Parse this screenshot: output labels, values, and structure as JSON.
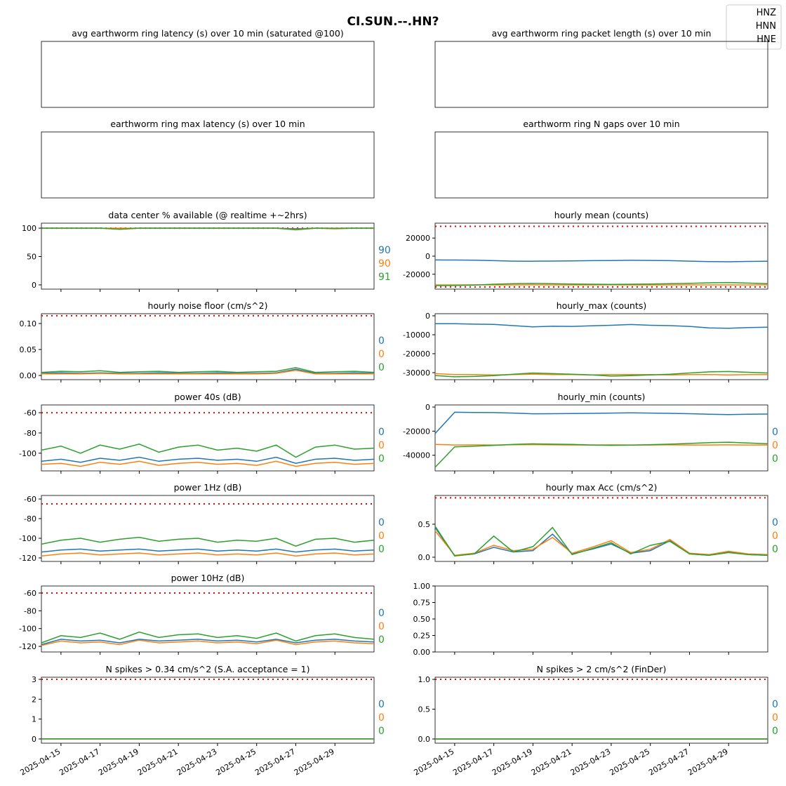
{
  "title": "CI.SUN.--.HN?",
  "channels": [
    {
      "name": "HNZ",
      "color": "#1f77b4"
    },
    {
      "name": "HNN",
      "color": "#ff7f0e"
    },
    {
      "name": "HNE",
      "color": "#2ca02c"
    }
  ],
  "x_axis": {
    "x": [
      "2025-04-14",
      "2025-04-15",
      "2025-04-16",
      "2025-04-17",
      "2025-04-18",
      "2025-04-19",
      "2025-04-20",
      "2025-04-21",
      "2025-04-22",
      "2025-04-23",
      "2025-04-24",
      "2025-04-25",
      "2025-04-26",
      "2025-04-27",
      "2025-04-28",
      "2025-04-29",
      "2025-04-30",
      "2025-05-01"
    ],
    "xlim": [
      "2025-04-14",
      "2025-05-01"
    ],
    "xticks": [
      "2025-04-15",
      "2025-04-17",
      "2025-04-19",
      "2025-04-21",
      "2025-04-23",
      "2025-04-25",
      "2025-04-27",
      "2025-04-29"
    ]
  },
  "chart_data": [
    {
      "type": "line",
      "title": "avg earthworm ring latency (s)   over 10 min (saturated @100)"
    },
    {
      "type": "line",
      "title": "avg earthworm ring packet length (s)   over 10 min"
    },
    {
      "type": "line",
      "title": "earthworm ring max latency (s)   over 10 min"
    },
    {
      "type": "line",
      "title": "earthworm ring N gaps   over 10 min"
    },
    {
      "type": "line",
      "title": "data center % available (@ realtime +~2hrs)",
      "ylim": [
        -7.5,
        108.75
      ],
      "yticks": [
        0,
        50,
        100
      ],
      "thresholds": [
        100
      ],
      "series": [
        {
          "values": [
            100,
            100,
            100,
            100,
            99,
            100,
            100,
            100,
            100,
            100,
            100,
            100,
            100,
            99,
            100,
            100,
            100,
            100
          ]
        },
        {
          "values": [
            100,
            100,
            100,
            100,
            100,
            100,
            100,
            100,
            100,
            100,
            100,
            100,
            100,
            98,
            100,
            100,
            100,
            100
          ]
        },
        {
          "values": [
            100,
            100,
            100,
            100,
            98,
            100,
            100,
            100,
            100,
            100,
            100,
            100,
            100,
            97,
            100,
            99,
            100,
            100
          ]
        }
      ],
      "side_labels": [
        90,
        90,
        91
      ]
    },
    {
      "type": "line",
      "title": "hourly mean (counts)",
      "ylim": [
        -36470,
        36470
      ],
      "yticks": [
        -20000,
        0,
        20000
      ],
      "thresholds": [
        33000,
        -34000
      ],
      "series": [
        {
          "values": [
            -4200,
            -4300,
            -4500,
            -5000,
            -5500,
            -5600,
            -5400,
            -5300,
            -5000,
            -4800,
            -4600,
            -4700,
            -5000,
            -5500,
            -6000,
            -6200,
            -5800,
            -5600
          ]
        },
        {
          "values": [
            -31800,
            -31800,
            -31700,
            -31800,
            -31800,
            -31700,
            -31800,
            -31800,
            -31800,
            -31700,
            -31800,
            -31800,
            -31800,
            -31700,
            -31800,
            -31800,
            -31800,
            -31700
          ]
        },
        {
          "values": [
            -32500,
            -32400,
            -32000,
            -31000,
            -30500,
            -30200,
            -30500,
            -30800,
            -31000,
            -31200,
            -31000,
            -30800,
            -30500,
            -30000,
            -29500,
            -29200,
            -29800,
            -30500
          ]
        }
      ]
    },
    {
      "type": "line",
      "title": "hourly noise floor (cm/s^2)",
      "ylim": [
        -0.0081,
        0.1189
      ],
      "yticks": [
        {
          "value": 0,
          "label": "0.00"
        },
        {
          "value": 0.05,
          "label": "0.05"
        },
        {
          "value": 0.1,
          "label": "0.10"
        }
      ],
      "thresholds": [
        0.115
      ],
      "series": [
        {
          "values": [
            0.004,
            0.005,
            0.004,
            0.005,
            0.004,
            0.004,
            0.005,
            0.004,
            0.004,
            0.005,
            0.004,
            0.004,
            0.005,
            0.012,
            0.004,
            0.004,
            0.005,
            0.004
          ]
        },
        {
          "values": [
            0.003,
            0.003,
            0.003,
            0.004,
            0.003,
            0.003,
            0.003,
            0.003,
            0.003,
            0.003,
            0.003,
            0.003,
            0.004,
            0.01,
            0.003,
            0.003,
            0.003,
            0.003
          ]
        },
        {
          "values": [
            0.006,
            0.008,
            0.007,
            0.009,
            0.006,
            0.007,
            0.008,
            0.006,
            0.007,
            0.008,
            0.006,
            0.007,
            0.008,
            0.015,
            0.006,
            0.007,
            0.008,
            0.006
          ]
        }
      ],
      "side_labels": [
        0,
        0,
        0
      ]
    },
    {
      "type": "line",
      "title": "hourly_max (counts)",
      "ylim": [
        -33700,
        1111
      ],
      "yticks": [
        -30000,
        -20000,
        -10000,
        0
      ],
      "series": [
        {
          "values": [
            -4200,
            -4200,
            -4400,
            -4500,
            -5200,
            -5800,
            -5500,
            -5600,
            -5300,
            -5000,
            -4600,
            -5000,
            -5200,
            -5600,
            -6400,
            -6600,
            -6200,
            -6000
          ]
        },
        {
          "values": [
            -30500,
            -31000,
            -31000,
            -31200,
            -31000,
            -30800,
            -31000,
            -31000,
            -31200,
            -31000,
            -31000,
            -31000,
            -31200,
            -31000,
            -31000,
            -31200,
            -31000,
            -31000
          ]
        },
        {
          "values": [
            -31500,
            -32200,
            -32000,
            -31600,
            -30800,
            -30200,
            -30500,
            -30800,
            -31200,
            -31800,
            -31600,
            -31200,
            -30800,
            -30200,
            -29600,
            -29400,
            -29800,
            -30200
          ]
        }
      ]
    },
    {
      "type": "line",
      "title": "power 40s (dB)",
      "ylim": [
        -117.5,
        -52.3
      ],
      "yticks": [
        -100,
        -80,
        -60
      ],
      "thresholds": [
        -60
      ],
      "series": [
        {
          "values": [
            -108,
            -106,
            -109,
            -105,
            -107,
            -104,
            -108,
            -106,
            -105,
            -107,
            -106,
            -108,
            -104,
            -110,
            -106,
            -105,
            -107,
            -106
          ]
        },
        {
          "values": [
            -111,
            -110,
            -113,
            -109,
            -111,
            -108,
            -112,
            -110,
            -109,
            -111,
            -110,
            -112,
            -108,
            -113,
            -110,
            -109,
            -111,
            -110
          ]
        },
        {
          "values": [
            -97,
            -93,
            -100,
            -92,
            -96,
            -91,
            -99,
            -94,
            -92,
            -97,
            -95,
            -98,
            -92,
            -104,
            -94,
            -92,
            -96,
            -95
          ]
        }
      ],
      "side_labels": [
        0,
        0,
        0
      ]
    },
    {
      "type": "line",
      "title": "hourly_min (counts)",
      "ylim": [
        -53000,
        1765
      ],
      "yticks": [
        -40000,
        -20000,
        0
      ],
      "series": [
        {
          "values": [
            -22000,
            -4300,
            -4500,
            -4600,
            -5000,
            -5600,
            -5500,
            -5400,
            -5200,
            -5000,
            -4800,
            -5000,
            -5200,
            -5500,
            -6000,
            -6200,
            -6000,
            -5800
          ]
        },
        {
          "values": [
            -31000,
            -31500,
            -31400,
            -31500,
            -31300,
            -31200,
            -31400,
            -31500,
            -31500,
            -31400,
            -31500,
            -31500,
            -31400,
            -31500,
            -31500,
            -31400,
            -31500,
            -31500
          ]
        },
        {
          "values": [
            -50000,
            -33000,
            -32500,
            -31800,
            -31000,
            -30500,
            -30800,
            -31000,
            -31500,
            -31800,
            -31600,
            -31200,
            -30800,
            -30200,
            -29500,
            -29200,
            -29800,
            -30500
          ]
        }
      ],
      "side_labels": [
        0,
        0,
        0
      ]
    },
    {
      "type": "line",
      "title": "power 1Hz (dB)",
      "ylim": [
        -123.6,
        -56.4
      ],
      "yticks": [
        -120,
        -100,
        -80,
        -60
      ],
      "thresholds": [
        -65
      ],
      "series": [
        {
          "values": [
            -114,
            -112,
            -111,
            -113,
            -112,
            -111,
            -113,
            -112,
            -111,
            -113,
            -112,
            -113,
            -111,
            -114,
            -112,
            -111,
            -113,
            -112
          ]
        },
        {
          "values": [
            -118,
            -116,
            -115,
            -117,
            -116,
            -115,
            -117,
            -116,
            -115,
            -117,
            -116,
            -117,
            -115,
            -118,
            -116,
            -115,
            -117,
            -116
          ]
        },
        {
          "values": [
            -106,
            -102,
            -100,
            -104,
            -101,
            -99,
            -103,
            -101,
            -100,
            -104,
            -102,
            -103,
            -100,
            -108,
            -101,
            -100,
            -104,
            -102
          ]
        }
      ],
      "side_labels": [
        0,
        0,
        0
      ]
    },
    {
      "type": "line",
      "title": "hourly max Acc (cm/s^2)",
      "ylim": [
        -0.064,
        0.936
      ],
      "yticks": [
        {
          "value": 0,
          "label": "0.0"
        },
        {
          "value": 0.5,
          "label": "0.5"
        }
      ],
      "thresholds": [
        0.9
      ],
      "series": [
        {
          "values": [
            0.45,
            0.02,
            0.05,
            0.15,
            0.08,
            0.1,
            0.35,
            0.05,
            0.12,
            0.2,
            0.06,
            0.1,
            0.25,
            0.05,
            0.03,
            0.08,
            0.04,
            0.03
          ]
        },
        {
          "values": [
            0.4,
            0.03,
            0.06,
            0.18,
            0.1,
            0.12,
            0.3,
            0.06,
            0.15,
            0.25,
            0.07,
            0.12,
            0.27,
            0.06,
            0.04,
            0.09,
            0.05,
            0.04
          ]
        },
        {
          "values": [
            0.47,
            0.02,
            0.05,
            0.32,
            0.08,
            0.16,
            0.45,
            0.04,
            0.13,
            0.22,
            0.05,
            0.18,
            0.24,
            0.05,
            0.03,
            0.07,
            0.04,
            0.03
          ]
        }
      ],
      "side_labels": [
        0,
        0,
        0
      ]
    },
    {
      "type": "line",
      "title": "power 10Hz (dB)",
      "ylim": [
        -126.3,
        -52.1
      ],
      "yticks": [
        -120,
        -100,
        -80,
        -60
      ],
      "thresholds": [
        -60
      ],
      "series": [
        {
          "values": [
            -118,
            -112,
            -114,
            -113,
            -116,
            -112,
            -114,
            -113,
            -112,
            -114,
            -113,
            -115,
            -112,
            -116,
            -113,
            -112,
            -114,
            -115
          ]
        },
        {
          "values": [
            -119,
            -114,
            -116,
            -115,
            -118,
            -113,
            -116,
            -115,
            -114,
            -116,
            -115,
            -117,
            -113,
            -118,
            -115,
            -114,
            -116,
            -117
          ]
        },
        {
          "values": [
            -116,
            -108,
            -110,
            -105,
            -112,
            -104,
            -110,
            -107,
            -106,
            -110,
            -108,
            -111,
            -105,
            -114,
            -108,
            -106,
            -110,
            -112
          ]
        }
      ],
      "side_labels": [
        0,
        0,
        0
      ]
    },
    {
      "type": "line",
      "ylim": [
        0,
        1
      ],
      "yticks": [
        {
          "value": 0,
          "label": "0.00"
        },
        {
          "value": 0.25,
          "label": "0.25"
        },
        {
          "value": 0.5,
          "label": "0.50"
        },
        {
          "value": 0.75,
          "label": "0.75"
        },
        {
          "value": 1,
          "label": "1.00"
        }
      ]
    },
    {
      "type": "line",
      "title": "N spikes > 0.34 cm/s^2 (S.A. acceptance = 1)",
      "ylim": [
        -0.214,
        3.107
      ],
      "yticks": [
        0,
        1,
        2,
        3
      ],
      "thresholds": [
        3
      ],
      "series": [
        {
          "values": [
            0,
            0,
            0,
            0,
            0,
            0,
            0,
            0,
            0,
            0,
            0,
            0,
            0,
            0,
            0,
            0,
            0,
            0
          ]
        },
        {
          "values": [
            0,
            0,
            0,
            0,
            0,
            0,
            0,
            0,
            0,
            0,
            0,
            0,
            0,
            0,
            0,
            0,
            0,
            0
          ]
        },
        {
          "values": [
            0,
            0,
            0,
            0,
            0,
            0,
            0,
            0,
            0,
            0,
            0,
            0,
            0,
            0,
            0,
            0,
            0,
            0
          ]
        }
      ],
      "side_labels": [
        0,
        0,
        0
      ]
    },
    {
      "type": "line",
      "title": "N spikes > 2 cm/s^2 (FinDer)",
      "ylim": [
        -0.071,
        1.036
      ],
      "yticks": [
        {
          "value": 0,
          "label": "0.0"
        },
        {
          "value": 0.5,
          "label": "0.5"
        },
        {
          "value": 1,
          "label": "1.0"
        }
      ],
      "thresholds": [
        1
      ],
      "series": [
        {
          "values": [
            0,
            0,
            0,
            0,
            0,
            0,
            0,
            0,
            0,
            0,
            0,
            0,
            0,
            0,
            0,
            0,
            0,
            0
          ]
        },
        {
          "values": [
            0,
            0,
            0,
            0,
            0,
            0,
            0,
            0,
            0,
            0,
            0,
            0,
            0,
            0,
            0,
            0,
            0,
            0
          ]
        },
        {
          "values": [
            0,
            0,
            0,
            0,
            0,
            0,
            0,
            0,
            0,
            0,
            0,
            0,
            0,
            0,
            0,
            0,
            0,
            0
          ]
        }
      ],
      "side_labels": [
        0,
        0,
        0
      ]
    }
  ]
}
